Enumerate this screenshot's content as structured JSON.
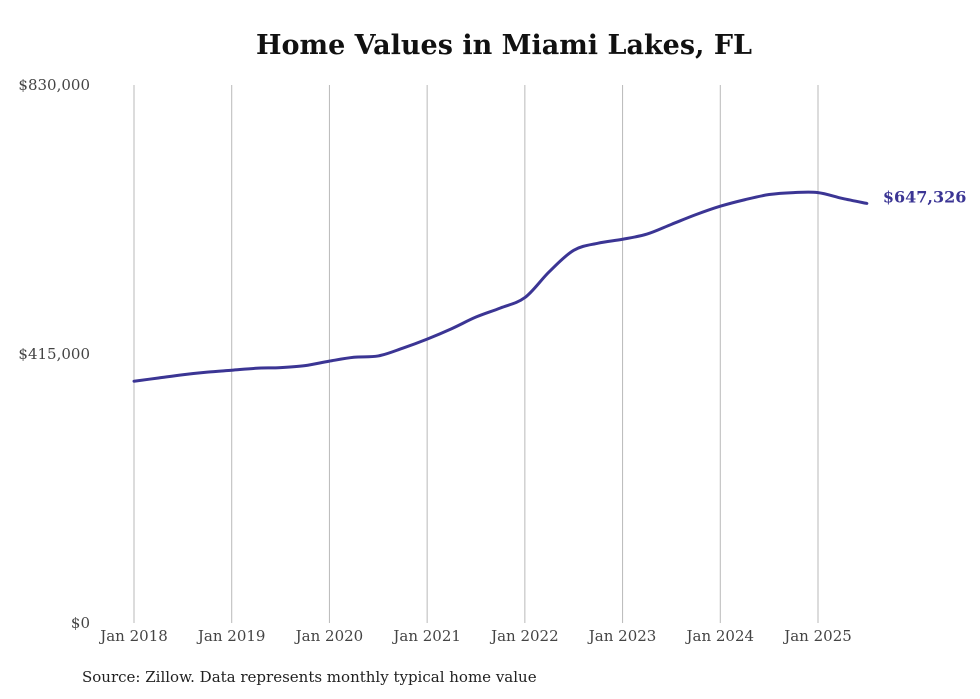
{
  "chart_data": {
    "type": "line",
    "title": "Home Values in Miami Lakes, FL",
    "xlabel": "",
    "ylabel": "",
    "ylim": [
      0,
      830000
    ],
    "y_ticks": [
      0,
      415000,
      830000
    ],
    "y_tick_labels": [
      "$0",
      "$415,000",
      "$830,000"
    ],
    "x_ticks": [
      "2018-01",
      "2019-01",
      "2020-01",
      "2021-01",
      "2022-01",
      "2023-01",
      "2024-01",
      "2025-01"
    ],
    "x_tick_labels": [
      "Jan 2018",
      "Jan 2019",
      "Jan 2020",
      "Jan 2021",
      "Jan 2022",
      "Jan 2023",
      "Jan 2024",
      "Jan 2025"
    ],
    "grid": "vertical",
    "line_color": "#3b3594",
    "end_label": "$647,326",
    "series": [
      {
        "x": [
          "2018-01",
          "2018-04",
          "2018-07",
          "2018-10",
          "2019-01",
          "2019-04",
          "2019-07",
          "2019-10",
          "2020-01",
          "2020-04",
          "2020-07",
          "2020-10",
          "2021-01",
          "2021-04",
          "2021-07",
          "2021-10",
          "2022-01",
          "2022-04",
          "2022-07",
          "2022-10",
          "2023-01",
          "2023-04",
          "2023-07",
          "2023-10",
          "2024-01",
          "2024-04",
          "2024-07",
          "2024-10",
          "2025-01",
          "2025-04",
          "2025-07"
        ],
        "values": [
          373000,
          378000,
          383000,
          387000,
          390000,
          393000,
          394000,
          397000,
          404000,
          410000,
          412000,
          424000,
          438000,
          454000,
          472000,
          486000,
          502000,
          542000,
          575000,
          586000,
          592000,
          600000,
          615000,
          630000,
          643000,
          653000,
          661000,
          664000,
          664000,
          655000,
          647326
        ]
      }
    ]
  },
  "source_note": "Source: Zillow. Data represents monthly typical home value"
}
